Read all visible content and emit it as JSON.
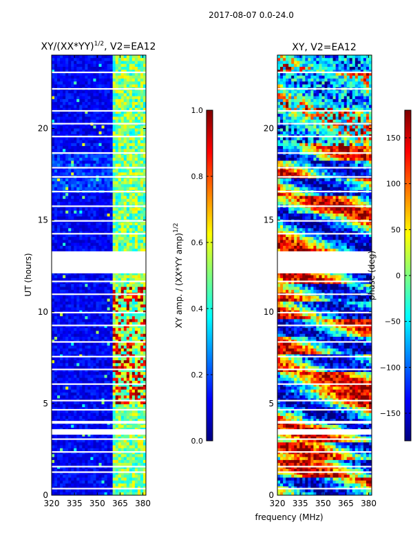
{
  "figure_title": "2017-08-07 0.0-24.0",
  "x_shared_label": "frequency (MHz)",
  "gap_color": "#ffffff",
  "colormap": [
    "#00007f",
    "#0000ff",
    "#007fff",
    "#00ffff",
    "#7fff7f",
    "#ffff00",
    "#ff7f00",
    "#ff0000",
    "#7f0000"
  ],
  "chart_data": [
    {
      "type": "heatmap",
      "title": "XY/(XX*YY)",
      "title_exponent": "1/2",
      "title_suffix": ", V2=EA12",
      "xlabel": "",
      "ylabel": "UT (hours)",
      "xlim": [
        320,
        382
      ],
      "ylim": [
        0,
        24
      ],
      "xticks": [
        "320",
        "335",
        "350",
        "365",
        "380"
      ],
      "xtick_values": [
        320,
        335,
        350,
        365,
        380
      ],
      "yticks": [
        "0",
        "5",
        "10",
        "15",
        "20"
      ],
      "ytick_values": [
        0,
        5,
        10,
        15,
        20
      ],
      "description": "normalized cross-correlation amplitude vs UT and frequency",
      "colorbar": {
        "label": "XY amp. / (XX*YY amp)",
        "label_exponent": "1/2",
        "ticks": [
          "0.0",
          "0.2",
          "0.4",
          "0.6",
          "0.8",
          "1.0"
        ],
        "tick_values": [
          0.0,
          0.2,
          0.4,
          0.6,
          0.8,
          1.0
        ],
        "range": [
          0.0,
          1.0
        ]
      },
      "data_gaps_hours": [
        [
          12.1,
          13.3
        ],
        [
          3.3,
          3.6
        ],
        [
          3.9,
          4.05
        ]
      ],
      "bright_band_mhz": [
        360,
        382
      ]
    },
    {
      "type": "heatmap",
      "title": "XY, V2=EA12",
      "xlabel": "",
      "ylabel": "",
      "xlim": [
        320,
        382
      ],
      "ylim": [
        0,
        24
      ],
      "xticks": [
        "320",
        "335",
        "350",
        "365",
        "380"
      ],
      "xtick_values": [
        320,
        335,
        350,
        365,
        380
      ],
      "yticks": [
        "0",
        "5",
        "10",
        "15",
        "20"
      ],
      "ytick_values": [
        0,
        5,
        10,
        15,
        20
      ],
      "description": "cross-correlation phase vs UT and frequency",
      "colorbar": {
        "label": "phase (deg)",
        "ticks": [
          "−150",
          "−100",
          "−50",
          "0",
          "50",
          "100",
          "150"
        ],
        "tick_values": [
          -150,
          -100,
          -50,
          0,
          50,
          100,
          150
        ],
        "range": [
          -180,
          180
        ]
      },
      "data_gaps_hours": [
        [
          12.1,
          13.3
        ],
        [
          3.3,
          3.6
        ],
        [
          3.9,
          4.05
        ]
      ]
    }
  ]
}
